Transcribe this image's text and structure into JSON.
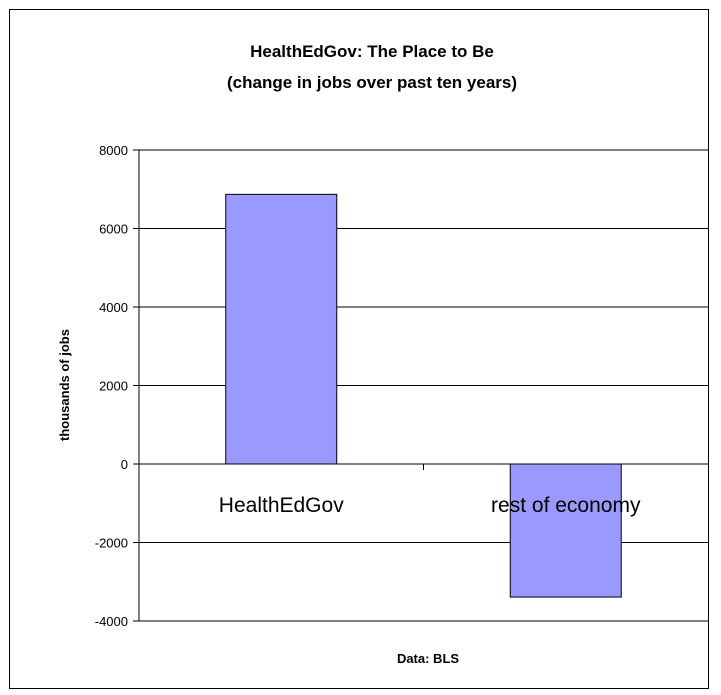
{
  "chart_data": {
    "type": "bar",
    "title": "HealthEdGov: The Place to Be",
    "subtitle": "(change in jobs over past ten years)",
    "categories": [
      "HealthEdGov",
      "rest of economy"
    ],
    "values": [
      6870,
      -3390
    ],
    "ylabel": "thousands of jobs",
    "xlabel": "Data: BLS",
    "ylim": [
      -4000,
      8000
    ],
    "yticks": [
      8000,
      6000,
      4000,
      2000,
      0,
      -2000,
      -4000
    ],
    "ytick_labels": [
      "8000",
      "6000",
      "4000",
      "2000",
      "0",
      "-2000",
      "-4000"
    ],
    "grid": true,
    "bar_color": "#9999ff"
  }
}
